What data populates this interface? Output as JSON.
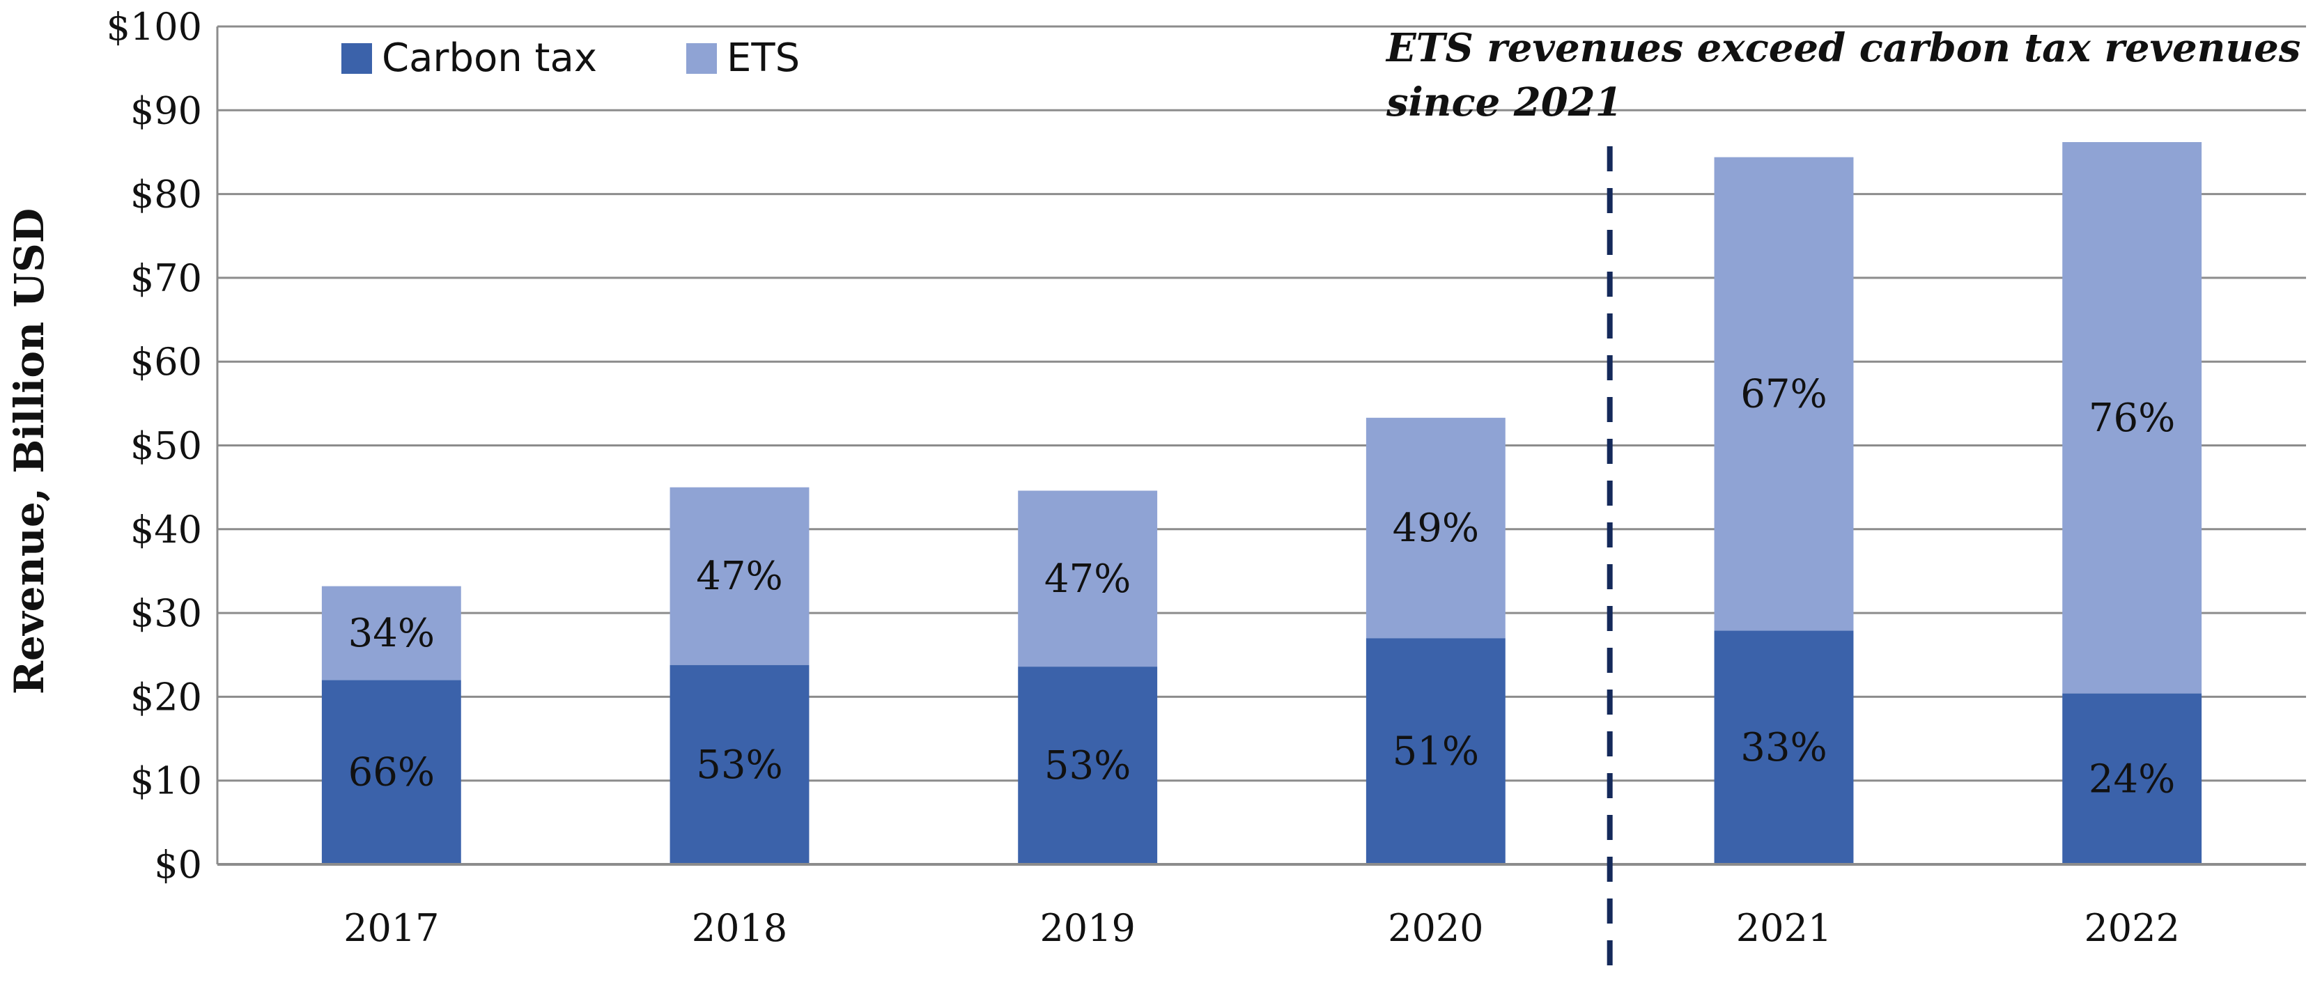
{
  "chart_data": {
    "type": "bar",
    "stacked": true,
    "categories": [
      "2017",
      "2018",
      "2019",
      "2020",
      "2021",
      "2022"
    ],
    "series": [
      {
        "name": "Carbon tax",
        "color": "#3b62aa",
        "values": [
          22.0,
          23.8,
          23.6,
          27.0,
          27.9,
          20.4
        ],
        "labels": [
          "66%",
          "53%",
          "53%",
          "51%",
          "33%",
          "24%"
        ]
      },
      {
        "name": "ETS",
        "color": "#8fa3d4",
        "values": [
          11.2,
          21.2,
          21.0,
          26.3,
          56.5,
          65.8
        ],
        "labels": [
          "34%",
          "47%",
          "47%",
          "49%",
          "67%",
          "76%"
        ]
      }
    ],
    "ylabel": "Revenue, Billion USD",
    "ylim": [
      0,
      100
    ],
    "yticks": [
      "$0",
      "$10",
      "$20",
      "$30",
      "$40",
      "$50",
      "$60",
      "$70",
      "$80",
      "$90",
      "$100"
    ],
    "grid": true,
    "legend_position": "top-left",
    "annotation": {
      "lines": [
        "ETS revenues exceed carbon tax revenues",
        "since 2021"
      ],
      "divider_between": [
        "2020",
        "2021"
      ],
      "divider_color": "#14295a"
    }
  }
}
